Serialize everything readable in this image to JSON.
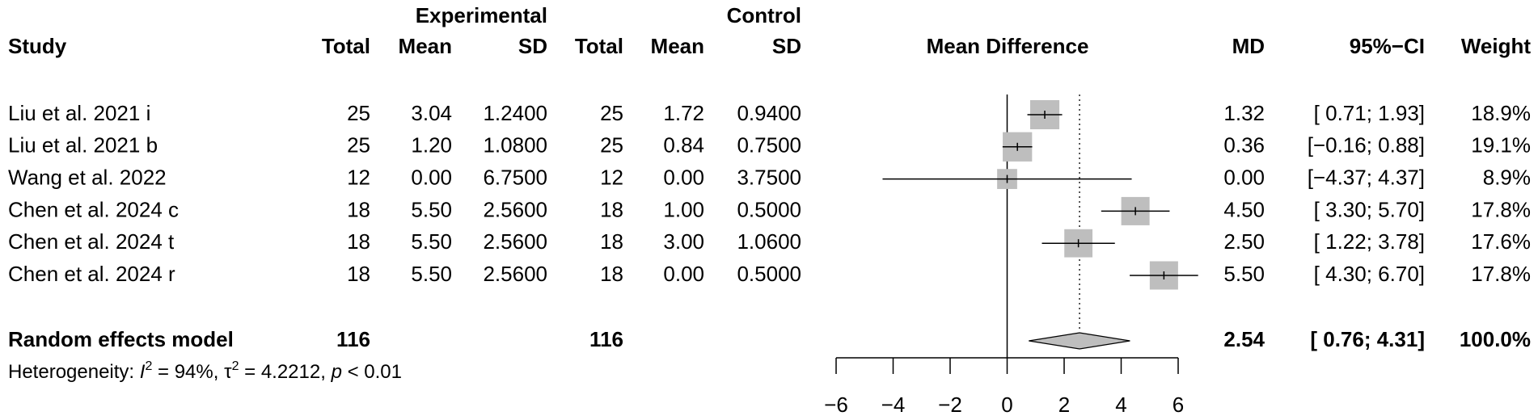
{
  "chart_data": {
    "type": "forest",
    "column_groups": [
      "Experimental",
      "Control"
    ],
    "columns": [
      "Study",
      "Total",
      "Mean",
      "SD",
      "Total",
      "Mean",
      "SD",
      "Mean Difference",
      "MD",
      "95%−CI",
      "Weight"
    ],
    "rows": [
      [
        "Liu et al. 2021 i",
        "25",
        "3.04",
        "1.2400",
        "25",
        "1.72",
        "0.9400"
      ],
      [
        "Liu et al. 2021 b",
        "25",
        "1.20",
        "1.0800",
        "25",
        "0.84",
        "0.7500"
      ],
      [
        "Wang et al. 2022",
        "12",
        "0.00",
        "6.7500",
        "12",
        "0.00",
        "3.7500"
      ],
      [
        "Chen et al. 2024 c",
        "18",
        "5.50",
        "2.5600",
        "18",
        "1.00",
        "0.5000"
      ],
      [
        "Chen et al. 2024 t",
        "18",
        "5.50",
        "2.5600",
        "18",
        "3.00",
        "1.0600"
      ],
      [
        "Chen et al. 2024 r",
        "18",
        "5.50",
        "2.5600",
        "18",
        "0.00",
        "0.5000"
      ]
    ],
    "values": [
      1.32,
      0.36,
      0,
      4.5,
      2.5,
      5.5
    ],
    "value_labels": [
      "1.32",
      "0.36",
      "0.00",
      "4.50",
      "2.50",
      "5.50"
    ],
    "ci_low": [
      0.71,
      -0.16,
      -4.37,
      3.3,
      1.22,
      4.3
    ],
    "ci_high": [
      1.93,
      0.88,
      4.37,
      5.7,
      3.78,
      6.7
    ],
    "ci_labels": [
      "[ 0.71; 1.93]",
      "[−0.16; 0.88]",
      "[−4.37; 4.37]",
      "[ 3.30; 5.70]",
      "[ 1.22; 3.78]",
      "[ 4.30; 6.70]"
    ],
    "weights": [
      18.9,
      19.1,
      8.9,
      17.8,
      17.6,
      17.8
    ],
    "weight_labels": [
      "18.9%",
      "19.1%",
      "8.9%",
      "17.8%",
      "17.6%",
      "17.8%"
    ],
    "pooled": {
      "name": "Random effects model",
      "experimental_total": "116",
      "control_total": "116",
      "value": 2.54,
      "value_label": "2.54",
      "ci_low": 0.76,
      "ci_high": 4.31,
      "ci_label": "[ 0.76; 4.31]",
      "weight": 100,
      "weight_label": "100.0%"
    },
    "heterogeneity": [
      "Heterogeneity: ",
      "I",
      "2",
      " = 94%, ",
      "τ",
      "2",
      " = 4.2212, ",
      "p",
      " < 0.01"
    ],
    "xlim": [
      -6,
      6
    ],
    "xticks": [
      {
        "value": -6,
        "label": "−6"
      },
      {
        "value": -4,
        "label": "−4"
      },
      {
        "value": -2,
        "label": "−2"
      },
      0,
      2,
      4,
      6
    ],
    "box_color": "#bebebe",
    "diamond_color": "#bebebe"
  }
}
